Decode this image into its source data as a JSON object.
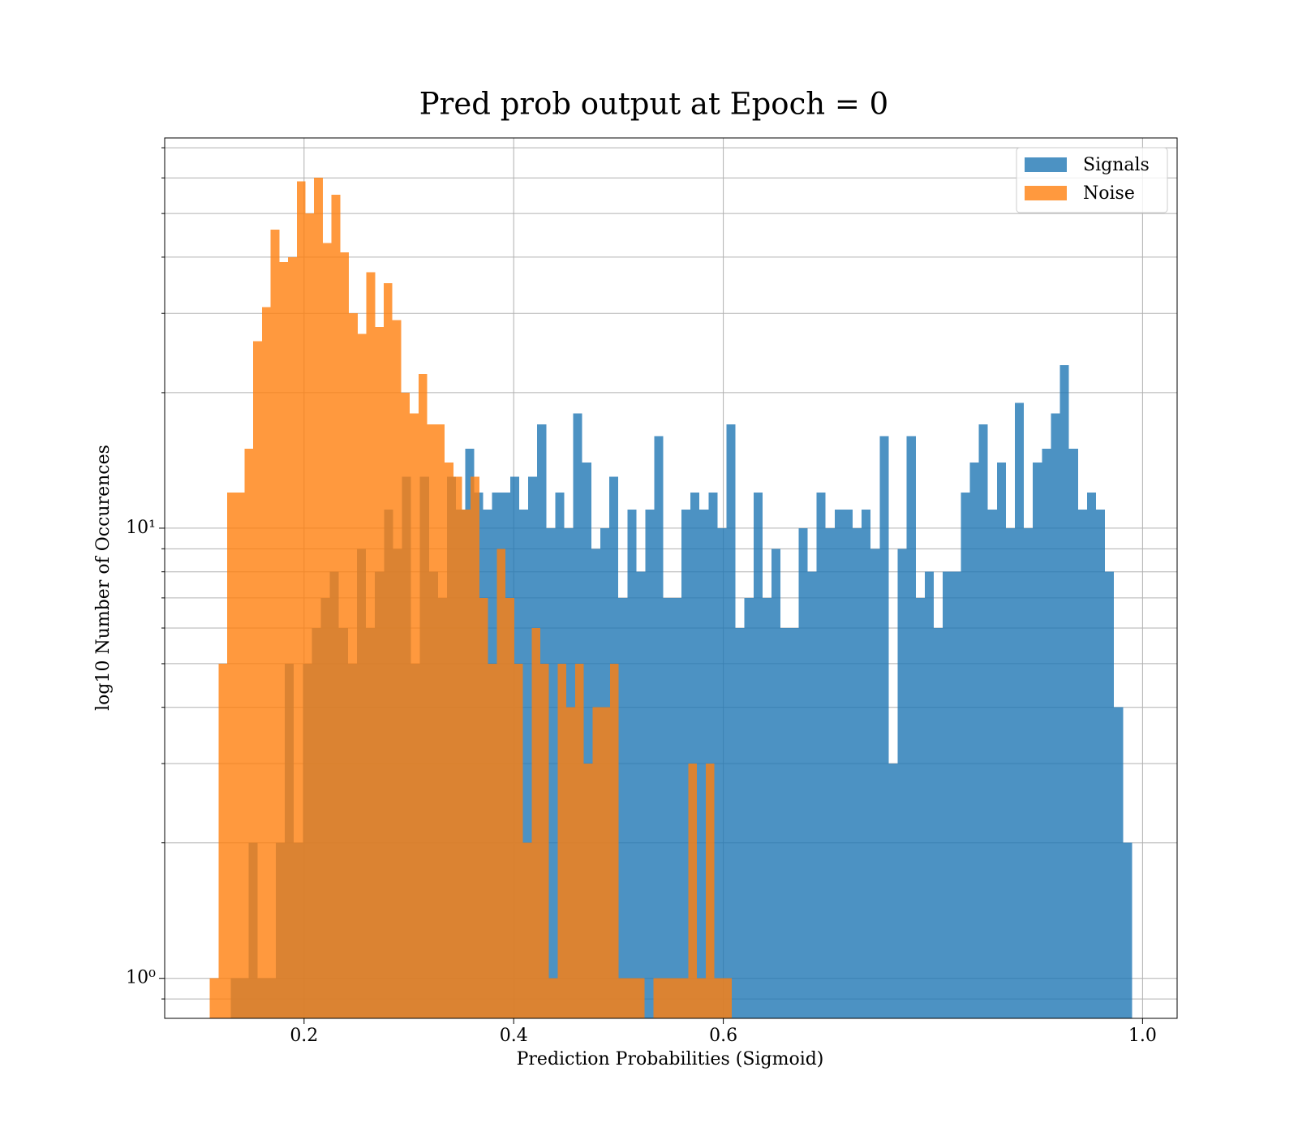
{
  "chart_data": {
    "type": "histogram",
    "title": "Pred prob output at Epoch = 0",
    "xlabel": "Prediction Probabilities (Sigmoid)",
    "ylabel": "log10 Number of Occurences",
    "xlim": [
      0.067,
      1.033
    ],
    "ylim": [
      0.815,
      73.6
    ],
    "ylog": true,
    "grid": true,
    "legend": "upper right",
    "xticks": [
      0.2,
      0.4,
      0.6,
      {
        "value": 1,
        "label": "1.0"
      }
    ],
    "yticks": [
      {
        "value": 1,
        "label": "10⁰"
      },
      {
        "value": 10,
        "label": "10¹"
      }
    ],
    "yminorticks": [
      0.9,
      2,
      3,
      4,
      5,
      6,
      7,
      8,
      9,
      20,
      30,
      40,
      50,
      60,
      70
    ],
    "series": [
      {
        "name": "Signals",
        "color": "#1f77b4",
        "opacity": 0.8,
        "bins": [
          0.13,
          0.1386,
          0.1472,
          0.1558,
          0.1644,
          0.173,
          0.1816,
          0.1902,
          0.1988,
          0.2074,
          0.216,
          0.2246,
          0.2332,
          0.2418,
          0.2504,
          0.259,
          0.2676,
          0.2762,
          0.2848,
          0.2934,
          0.302,
          0.3106,
          0.3192,
          0.3278,
          0.3364,
          0.345,
          0.3536,
          0.3622,
          0.3708,
          0.3794,
          0.388,
          0.3966,
          0.4052,
          0.4138,
          0.4224,
          0.431,
          0.4396,
          0.4482,
          0.4568,
          0.4654,
          0.474,
          0.4826,
          0.4912,
          0.4998,
          0.5084,
          0.517,
          0.5256,
          0.5342,
          0.5428,
          0.5514,
          0.56,
          0.5686,
          0.5772,
          0.5858,
          0.5944,
          0.603,
          0.6116,
          0.6202,
          0.6288,
          0.6374,
          0.646,
          0.6546,
          0.6632,
          0.6718,
          0.6804,
          0.689,
          0.6976,
          0.7062,
          0.7148,
          0.7234,
          0.732,
          0.7406,
          0.7492,
          0.7578,
          0.7664,
          0.775,
          0.7836,
          0.7922,
          0.8008,
          0.8094,
          0.818,
          0.8266,
          0.8352,
          0.8438,
          0.8524,
          0.861,
          0.8696,
          0.8782,
          0.8868,
          0.8954,
          0.904,
          0.9126,
          0.9212,
          0.9298,
          0.9384,
          0.947,
          0.9556,
          0.9642,
          0.9728,
          0.9814,
          0.99
        ],
        "values": [
          1,
          1,
          2,
          1,
          1,
          2,
          5,
          2,
          5,
          6,
          7,
          8,
          6,
          5,
          9,
          6,
          8,
          11,
          9,
          13,
          5,
          13,
          8,
          7,
          13,
          11,
          15,
          12,
          11,
          12,
          12,
          13,
          11,
          13,
          17,
          10,
          12,
          10,
          18,
          14,
          9,
          10,
          13,
          7,
          11,
          8,
          11,
          16,
          7,
          7,
          11,
          12,
          11,
          12,
          10,
          17,
          6,
          7,
          12,
          7,
          9,
          6,
          6,
          10,
          8,
          12,
          10,
          11,
          11,
          10,
          11,
          9,
          16,
          3,
          9,
          16,
          7,
          8,
          6,
          8,
          8,
          12,
          14,
          17,
          11,
          14,
          10,
          19,
          10,
          14,
          15,
          18,
          23,
          15,
          11,
          12,
          11,
          8,
          4,
          2
        ]
      },
      {
        "name": "Noise",
        "color": "#ff7f0e",
        "opacity": 0.8,
        "bins": [
          0.11,
          0.1183,
          0.1266,
          0.1349,
          0.1432,
          0.1515,
          0.1598,
          0.1681,
          0.1764,
          0.1847,
          0.193,
          0.2013,
          0.2096,
          0.2179,
          0.2262,
          0.2345,
          0.2428,
          0.2511,
          0.2594,
          0.2677,
          0.276,
          0.2843,
          0.2926,
          0.3009,
          0.3092,
          0.3175,
          0.3258,
          0.3341,
          0.3424,
          0.3507,
          0.359,
          0.3673,
          0.3756,
          0.3839,
          0.3922,
          0.4005,
          0.4088,
          0.4171,
          0.4254,
          0.4337,
          0.442,
          0.4503,
          0.4586,
          0.4669,
          0.4752,
          0.4835,
          0.4918,
          0.5001,
          0.5084,
          0.5167,
          0.525,
          0.5333,
          0.5416,
          0.5499,
          0.5582,
          0.5665,
          0.5748,
          0.5831,
          0.5914,
          0.5997,
          0.608
        ],
        "values": [
          1,
          5,
          12,
          12,
          15,
          26,
          31,
          46,
          39,
          40,
          59,
          50,
          60,
          43,
          55,
          41,
          30,
          27,
          37,
          28,
          35,
          29,
          20,
          18,
          22,
          17,
          17,
          14,
          13,
          11,
          13,
          7,
          5,
          9,
          7,
          5,
          2,
          6,
          5,
          1,
          5,
          4,
          5,
          3,
          4,
          4,
          5,
          1,
          1,
          1,
          0,
          1,
          1,
          1,
          1,
          3,
          1,
          3,
          1,
          1
        ]
      }
    ]
  }
}
